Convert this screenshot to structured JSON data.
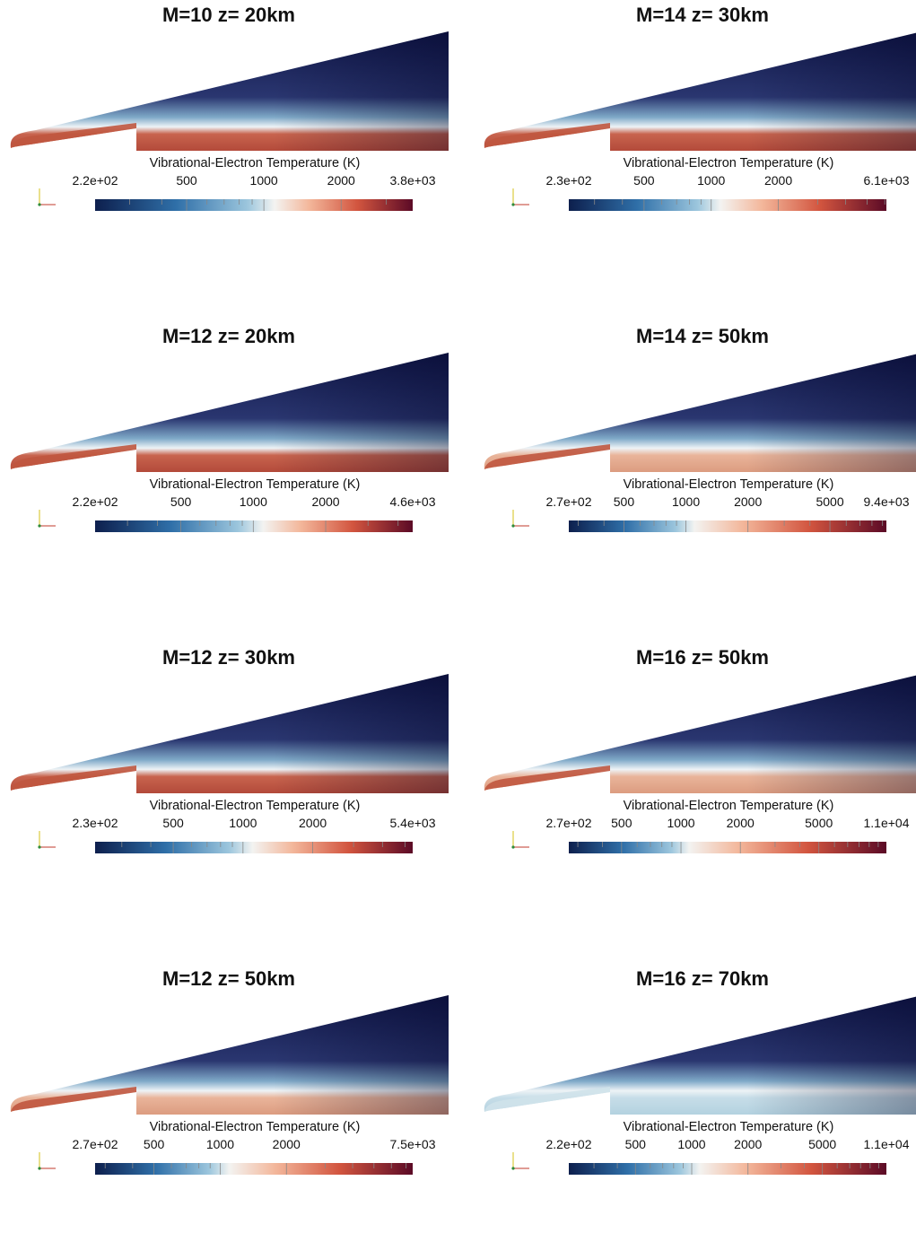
{
  "colorbar_title": "Vibrational-Electron Temperature (K)",
  "colors": {
    "background": "#ffffff",
    "cold": "#13204f",
    "mid": "#eef3f6",
    "hot": "#b03a2e",
    "hottest": "#5b0a26"
  },
  "panels": [
    {
      "title": "M=10 z= 20km",
      "min_label": "2.2e+02",
      "max_label": "3.8e+03",
      "min": 220,
      "max": 3800,
      "ticks": [
        {
          "v": 500,
          "label": "500"
        },
        {
          "v": 1000,
          "label": "1000"
        },
        {
          "v": 2000,
          "label": "2000"
        }
      ],
      "layer": "hot"
    },
    {
      "title": "M=14 z= 30km",
      "min_label": "2.3e+02",
      "max_label": "6.1e+03",
      "min": 230,
      "max": 6100,
      "ticks": [
        {
          "v": 500,
          "label": "500"
        },
        {
          "v": 1000,
          "label": "1000"
        },
        {
          "v": 2000,
          "label": "2000"
        }
      ],
      "layer": "hot"
    },
    {
      "title": "M=12 z= 20km",
      "min_label": "2.2e+02",
      "max_label": "4.6e+03",
      "min": 220,
      "max": 4600,
      "ticks": [
        {
          "v": 500,
          "label": "500"
        },
        {
          "v": 1000,
          "label": "1000"
        },
        {
          "v": 2000,
          "label": "2000"
        }
      ],
      "layer": "hot"
    },
    {
      "title": "M=14 z= 50km",
      "min_label": "2.7e+02",
      "max_label": "9.4e+03",
      "min": 270,
      "max": 9400,
      "ticks": [
        {
          "v": 500,
          "label": "500"
        },
        {
          "v": 1000,
          "label": "1000"
        },
        {
          "v": 2000,
          "label": "2000"
        },
        {
          "v": 5000,
          "label": "5000"
        }
      ],
      "layer": "warm"
    },
    {
      "title": "M=12 z= 30km",
      "min_label": "2.3e+02",
      "max_label": "5.4e+03",
      "min": 230,
      "max": 5400,
      "ticks": [
        {
          "v": 500,
          "label": "500"
        },
        {
          "v": 1000,
          "label": "1000"
        },
        {
          "v": 2000,
          "label": "2000"
        }
      ],
      "layer": "hot"
    },
    {
      "title": "M=16 z= 50km",
      "min_label": "2.7e+02",
      "max_label": "1.1e+04",
      "min": 270,
      "max": 11000,
      "ticks": [
        {
          "v": 500,
          "label": "500"
        },
        {
          "v": 1000,
          "label": "1000"
        },
        {
          "v": 2000,
          "label": "2000"
        },
        {
          "v": 5000,
          "label": "5000"
        }
      ],
      "layer": "warm"
    },
    {
      "title": "M=12 z= 50km",
      "min_label": "2.7e+02",
      "max_label": "7.5e+03",
      "min": 270,
      "max": 7500,
      "ticks": [
        {
          "v": 500,
          "label": "500"
        },
        {
          "v": 1000,
          "label": "1000"
        },
        {
          "v": 2000,
          "label": "2000"
        }
      ],
      "layer": "warm"
    },
    {
      "title": "M=16 z= 70km",
      "min_label": "2.2e+02",
      "max_label": "1.1e+04",
      "min": 220,
      "max": 11000,
      "ticks": [
        {
          "v": 500,
          "label": "500"
        },
        {
          "v": 1000,
          "label": "1000"
        },
        {
          "v": 2000,
          "label": "2000"
        },
        {
          "v": 5000,
          "label": "5000"
        }
      ],
      "layer": "cool"
    }
  ]
}
